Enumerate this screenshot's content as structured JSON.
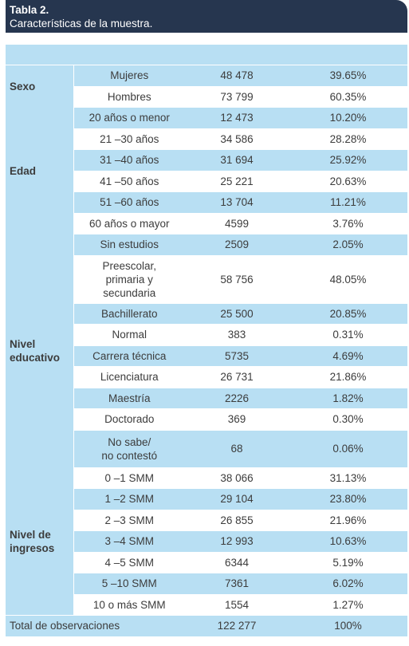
{
  "header": {
    "label": "Tabla 2.",
    "title": "Características de la muestra."
  },
  "groups": [
    {
      "name": "Sexo",
      "rows": [
        {
          "cat": "Mujeres",
          "n": "48 478",
          "pct": "39.65%",
          "style": "alt"
        },
        {
          "cat": "Hombres",
          "n": "73 799",
          "pct": "60.35%",
          "style": "white"
        }
      ]
    },
    {
      "name": "Edad",
      "rows": [
        {
          "cat": "20 años o menor",
          "n": "12 473",
          "pct": "10.20%",
          "style": "alt"
        },
        {
          "cat": "21 –30 años",
          "n": "34 586",
          "pct": "28.28%",
          "style": "white"
        },
        {
          "cat": "31 –40 años",
          "n": "31 694",
          "pct": "25.92%",
          "style": "alt"
        },
        {
          "cat": "41 –50 años",
          "n": "25 221",
          "pct": "20.63%",
          "style": "white"
        },
        {
          "cat": "51 –60 años",
          "n": "13 704",
          "pct": "11.21%",
          "style": "alt"
        },
        {
          "cat": "60 años o mayor",
          "n": "4599",
          "pct": "3.76%",
          "style": "white"
        }
      ]
    },
    {
      "name": "Nivel\neducativo",
      "rows": [
        {
          "cat": "Sin estudios",
          "n": "2509",
          "pct": "2.05%",
          "style": "alt"
        },
        {
          "cat": "Preescolar,\nprimaria y\nsecundaria",
          "n": "58 756",
          "pct": "48.05%",
          "style": "white"
        },
        {
          "cat": "Bachillerato",
          "n": "25 500",
          "pct": "20.85%",
          "style": "alt"
        },
        {
          "cat": "Normal",
          "n": "383",
          "pct": "0.31%",
          "style": "white"
        },
        {
          "cat": "Carrera técnica",
          "n": "5735",
          "pct": "4.69%",
          "style": "alt"
        },
        {
          "cat": "Licenciatura",
          "n": "26 731",
          "pct": "21.86%",
          "style": "white"
        },
        {
          "cat": "Maestría",
          "n": "2226",
          "pct": "1.82%",
          "style": "alt"
        },
        {
          "cat": "Doctorado",
          "n": "369",
          "pct": "0.30%",
          "style": "white"
        },
        {
          "cat": "No sabe/\nno contestó",
          "n": "68",
          "pct": "0.06%",
          "style": "alt"
        }
      ]
    },
    {
      "name": "Nivel de\ningresos",
      "rows": [
        {
          "cat": "0 –1 SMM",
          "n": "38 066",
          "pct": "31.13%",
          "style": "white"
        },
        {
          "cat": "1 –2 SMM",
          "n": "29 104",
          "pct": "23.80%",
          "style": "alt"
        },
        {
          "cat": "2 –3 SMM",
          "n": "26 855",
          "pct": "21.96%",
          "style": "white"
        },
        {
          "cat": "3 –4 SMM",
          "n": "12 993",
          "pct": "10.63%",
          "style": "alt"
        },
        {
          "cat": "4 –5 SMM",
          "n": "6344",
          "pct": "5.19%",
          "style": "white"
        },
        {
          "cat": "5 –10 SMM",
          "n": "7361",
          "pct": "6.02%",
          "style": "alt"
        },
        {
          "cat": "10 o más SMM",
          "n": "1554",
          "pct": "1.27%",
          "style": "white"
        }
      ]
    }
  ],
  "total": {
    "label": "Total de observaciones",
    "n": "122 277",
    "pct": "100%"
  },
  "colors": {
    "header": "#26364f",
    "band": "#b8dff3"
  }
}
